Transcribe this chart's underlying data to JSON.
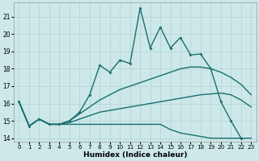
{
  "xlabel": "Humidex (Indice chaleur)",
  "bg_color": "#cce8e8",
  "grid_color": "#b8d4d4",
  "line_color": "#1a6e6e",
  "xlim": [
    -0.5,
    23.5
  ],
  "ylim": [
    13.8,
    21.8
  ],
  "yticks": [
    14,
    15,
    16,
    17,
    18,
    19,
    20,
    21
  ],
  "xticks": [
    0,
    1,
    2,
    3,
    4,
    5,
    6,
    7,
    8,
    9,
    10,
    11,
    12,
    13,
    14,
    15,
    16,
    17,
    18,
    19,
    20,
    21,
    22,
    23
  ],
  "series": [
    {
      "x": [
        0,
        1,
        2,
        3,
        4,
        5,
        6,
        7,
        8,
        9,
        10,
        11,
        12,
        13,
        14,
        15,
        16,
        17,
        18,
        19,
        20,
        21,
        22,
        23
      ],
      "y": [
        16.1,
        14.7,
        15.1,
        14.8,
        14.8,
        14.8,
        14.8,
        14.8,
        14.8,
        14.8,
        14.8,
        14.8,
        14.8,
        14.8,
        14.8,
        14.5,
        14.3,
        14.2,
        14.1,
        14.0,
        14.0,
        14.0,
        14.0,
        14.0
      ],
      "marker": false,
      "lw": 1.0
    },
    {
      "x": [
        0,
        1,
        2,
        3,
        4,
        5,
        6,
        7,
        8,
        9,
        10,
        11,
        12,
        13,
        14,
        15,
        16,
        17,
        18,
        19,
        20,
        21,
        22,
        23
      ],
      "y": [
        16.1,
        14.7,
        15.1,
        14.8,
        14.8,
        14.9,
        15.1,
        15.3,
        15.5,
        15.6,
        15.7,
        15.8,
        15.9,
        16.0,
        16.1,
        16.2,
        16.3,
        16.4,
        16.5,
        16.55,
        16.6,
        16.5,
        16.2,
        15.8
      ],
      "marker": false,
      "lw": 1.0
    },
    {
      "x": [
        0,
        1,
        2,
        3,
        4,
        5,
        6,
        7,
        8,
        9,
        10,
        11,
        12,
        13,
        14,
        15,
        16,
        17,
        18,
        19,
        20,
        21,
        22,
        23
      ],
      "y": [
        16.1,
        14.7,
        15.1,
        14.8,
        14.8,
        15.0,
        15.4,
        15.8,
        16.2,
        16.5,
        16.8,
        17.0,
        17.2,
        17.4,
        17.6,
        17.8,
        18.0,
        18.1,
        18.1,
        18.0,
        17.8,
        17.5,
        17.1,
        16.5
      ],
      "marker": false,
      "lw": 1.0
    },
    {
      "x": [
        0,
        1,
        2,
        3,
        4,
        5,
        6,
        7,
        8,
        9,
        10,
        11,
        12,
        13,
        14,
        15,
        16,
        17,
        18,
        19,
        20,
        21,
        22
      ],
      "y": [
        16.1,
        14.7,
        15.1,
        14.8,
        14.8,
        15.0,
        15.5,
        16.5,
        18.2,
        17.8,
        18.5,
        18.3,
        21.5,
        19.2,
        20.4,
        19.2,
        19.8,
        18.8,
        18.85,
        18.0,
        16.1,
        15.0,
        14.0
      ],
      "marker": true,
      "lw": 1.0
    }
  ]
}
